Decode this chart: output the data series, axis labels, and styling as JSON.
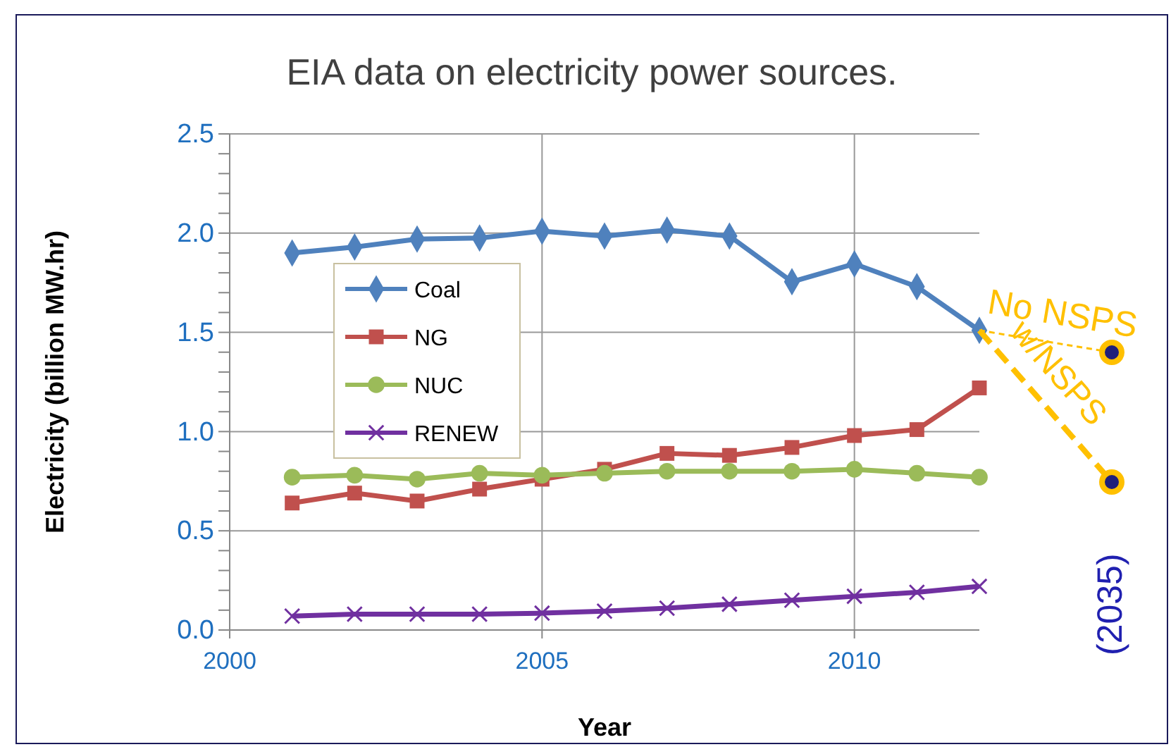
{
  "chart_data": {
    "type": "line",
    "title": "EIA data on electricity power sources.",
    "xlabel": "Year",
    "ylabel": "Electricity (billion MW.hr)",
    "x": [
      2001,
      2002,
      2003,
      2004,
      2005,
      2006,
      2007,
      2008,
      2009,
      2010,
      2011,
      2012
    ],
    "series": [
      {
        "name": "Coal",
        "color": "#4f81bd",
        "marker": "diamond",
        "values": [
          1.9,
          1.93,
          1.97,
          1.975,
          2.01,
          1.985,
          2.015,
          1.985,
          1.755,
          1.845,
          1.73,
          1.51
        ]
      },
      {
        "name": "NG",
        "color": "#c0504d",
        "marker": "square",
        "values": [
          0.64,
          0.69,
          0.65,
          0.71,
          0.76,
          0.81,
          0.89,
          0.88,
          0.92,
          0.98,
          1.01,
          1.22
        ]
      },
      {
        "name": "NUC",
        "color": "#9bbb59",
        "marker": "circle",
        "values": [
          0.77,
          0.78,
          0.76,
          0.79,
          0.78,
          0.79,
          0.8,
          0.8,
          0.8,
          0.81,
          0.79,
          0.77
        ]
      },
      {
        "name": "RENEW",
        "color": "#7030a0",
        "marker": "cross",
        "values": [
          0.07,
          0.08,
          0.08,
          0.08,
          0.085,
          0.095,
          0.11,
          0.13,
          0.15,
          0.17,
          0.19,
          0.22
        ]
      }
    ],
    "xlim": [
      2000,
      2012
    ],
    "xticks": [
      2000,
      2005,
      2010
    ],
    "ylim": [
      0,
      2.5
    ],
    "yticks": [
      {
        "value": 0,
        "label": "0.0"
      },
      {
        "value": 0.1,
        "label": null
      },
      {
        "value": 0.2,
        "label": null
      },
      {
        "value": 0.3,
        "label": null
      },
      {
        "value": 0.4,
        "label": null
      },
      {
        "value": 0.5,
        "label": "0.5"
      },
      {
        "value": 0.6,
        "label": null
      },
      {
        "value": 0.7,
        "label": null
      },
      {
        "value": 0.8,
        "label": null
      },
      {
        "value": 0.9,
        "label": null
      },
      {
        "value": 1,
        "label": "1.0"
      },
      {
        "value": 1.1,
        "label": null
      },
      {
        "value": 1.2,
        "label": null
      },
      {
        "value": 1.3,
        "label": null
      },
      {
        "value": 1.4,
        "label": null
      },
      {
        "value": 1.5,
        "label": "1.5"
      },
      {
        "value": 1.6,
        "label": null
      },
      {
        "value": 1.7,
        "label": null
      },
      {
        "value": 1.8,
        "label": null
      },
      {
        "value": 1.9,
        "label": null
      },
      {
        "value": 2,
        "label": "2.0"
      },
      {
        "value": 2.1,
        "label": null
      },
      {
        "value": 2.2,
        "label": null
      },
      {
        "value": 2.3,
        "label": null
      },
      {
        "value": 2.4,
        "label": null
      },
      {
        "value": 2.5,
        "label": "2.5"
      }
    ],
    "grid": true,
    "legend": "left",
    "annotations": [
      "No NSPS",
      "w/NSPS",
      "(2035)"
    ]
  }
}
